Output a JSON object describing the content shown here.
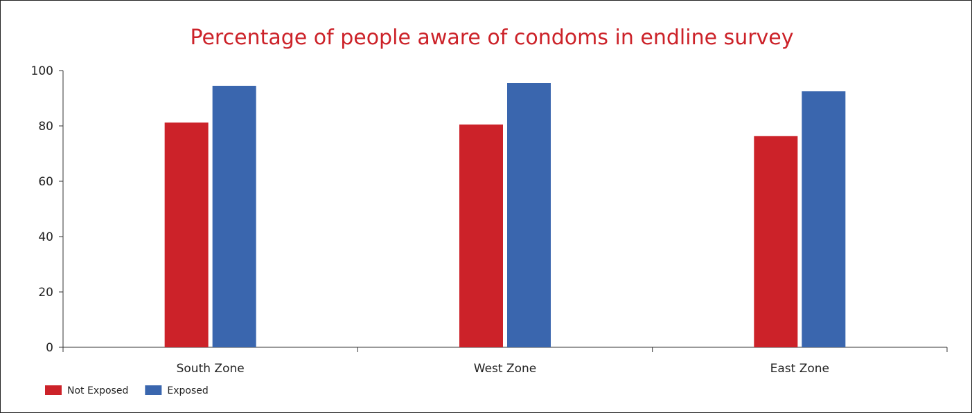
{
  "colors": {
    "title": "#cc2229",
    "axis": "#333333",
    "not_exposed": "#cc2229",
    "exposed": "#3a66ae"
  },
  "chart_data": {
    "type": "bar",
    "title": "Percentage of people aware of condoms in endline survey",
    "xlabel": "",
    "ylabel": "",
    "categories": [
      "South Zone",
      "West Zone",
      "East Zone"
    ],
    "series": [
      {
        "name": "Not Exposed",
        "color": "#cc2229",
        "values": [
          81.2,
          80.5,
          76.3
        ]
      },
      {
        "name": "Exposed",
        "color": "#3a66ae",
        "values": [
          94.5,
          95.5,
          92.5
        ]
      }
    ],
    "ylim": [
      0,
      100
    ],
    "yticks": [
      0,
      20,
      40,
      60,
      80,
      100
    ],
    "grid": false,
    "legend_position": "bottom-left"
  }
}
